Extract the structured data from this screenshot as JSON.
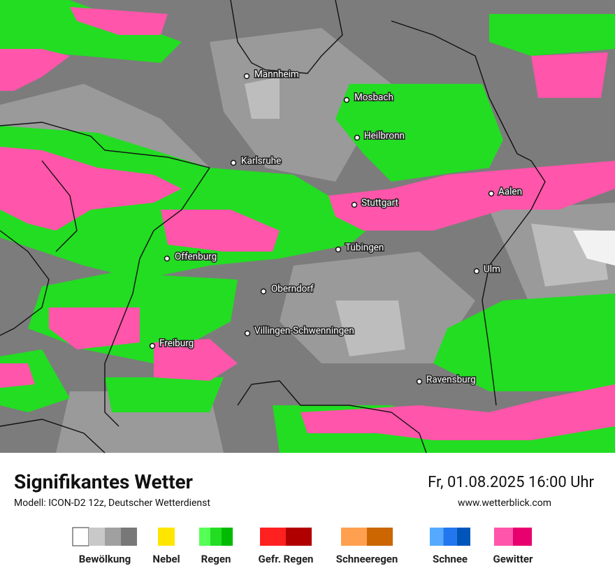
{
  "map": {
    "cities": [
      "Mannheim",
      "Mosbach",
      "Heilbronn",
      "Karlsruhe",
      "Stuttgart",
      "Aalen",
      "Tübingen",
      "Offenburg",
      "Ulm",
      "Oberndorf",
      "Villingen-Schwenningen",
      "Freiburg",
      "Ravensburg"
    ]
  },
  "footer": {
    "title": "Signifikantes Wetter",
    "model": "Modell: ICON-D2 12z, Deutscher Wetterdienst",
    "datetime": "Fr, 01.08.2025 16:00 Uhr",
    "website": "www.wetterblick.com"
  },
  "legend": [
    {
      "label": "Bewölkung",
      "colors": [
        "#ffffff",
        "#c8c8c8",
        "#a0a0a0",
        "#787878"
      ]
    },
    {
      "label": "Nebel",
      "colors": [
        "#ffe600"
      ]
    },
    {
      "label": "Regen",
      "colors": [
        "#55ff55",
        "#22dd22",
        "#00bb00"
      ]
    },
    {
      "label": "Gefr. Regen",
      "colors": [
        "#ff2020",
        "#b00000"
      ]
    },
    {
      "label": "Schneeregen",
      "colors": [
        "#ffa050",
        "#cc6600"
      ]
    },
    {
      "label": "Schnee",
      "colors": [
        "#55aaff",
        "#2277ee",
        "#0055bb"
      ]
    },
    {
      "label": "Gewitter",
      "colors": [
        "#ff55aa",
        "#e8006e"
      ]
    }
  ]
}
